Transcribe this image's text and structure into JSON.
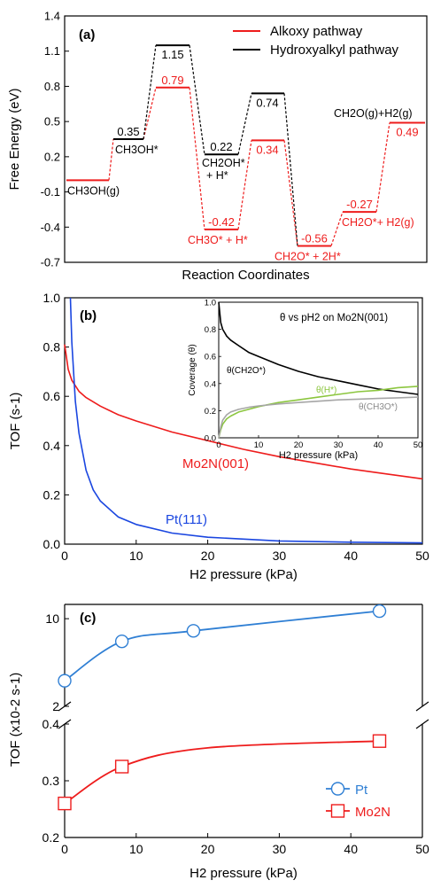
{
  "chart_data": [
    {
      "panel": "(a)",
      "type": "line",
      "xlabel": "Reaction Coordinates",
      "ylabel": "Free Energy (eV)",
      "ylim": [
        -0.7,
        1.4
      ],
      "yticks": [
        "1.4",
        "1.1",
        "0.8",
        "0.5",
        "0.2",
        "-0.1",
        "-0.4",
        "-0.7"
      ],
      "legend": "top-right",
      "colors": {
        "alkoxy": "#ee1c1c",
        "hydroxy": "#000000"
      },
      "series": [
        {
          "name": "Alkoxy pathway",
          "key": "alkoxy",
          "levels": [
            {
              "value": 0.0,
              "label": "",
              "state": "CH3OH(g)"
            },
            {
              "value": 0.35,
              "label": "",
              "state": ""
            },
            {
              "value": 0.79,
              "label": "0.79",
              "state": ""
            },
            {
              "value": -0.42,
              "label": "-0.42",
              "state": "CH3O* + H*"
            },
            {
              "value": 0.34,
              "label": "0.34",
              "state": ""
            },
            {
              "value": -0.56,
              "label": "-0.56",
              "state": "CH2O* + 2H*"
            },
            {
              "value": -0.27,
              "label": "-0.27",
              "state": "CH2O*+ H2(g)"
            },
            {
              "value": 0.49,
              "label": "0.49",
              "state": ""
            }
          ]
        },
        {
          "name": "Hydroxyalkyl pathway",
          "key": "hydroxy",
          "levels": [
            {
              "value": 0.35,
              "label": "0.35",
              "state": "CH3OH*"
            },
            {
              "value": 1.15,
              "label": "1.15",
              "state": ""
            },
            {
              "value": 0.22,
              "label": "0.22",
              "state": "CH2OH*"
            },
            {
              "value": 0.74,
              "label": "0.74",
              "state": ""
            }
          ]
        }
      ],
      "annotations": {
        "hplus": "+ H*",
        "product": "CH2O(g)+H2(g)"
      }
    },
    {
      "panel": "(b)",
      "type": "line",
      "xlabel": "H2 pressure (kPa)",
      "ylabel": "TOF (s-1)",
      "xlim": [
        0,
        50
      ],
      "ylim": [
        0,
        1.0
      ],
      "xticks": [
        "0",
        "10",
        "20",
        "30",
        "40",
        "50"
      ],
      "yticks": [
        "0.0",
        "0.2",
        "0.4",
        "0.6",
        "0.8",
        "1.0"
      ],
      "series": [
        {
          "name": "Mo2N(001)",
          "color": "#ee1c1c",
          "x": [
            0,
            0.5,
            1,
            2,
            3,
            5,
            7.5,
            10,
            15,
            20,
            25,
            30,
            35,
            40,
            45,
            50
          ],
          "y": [
            0.81,
            0.71,
            0.665,
            0.62,
            0.595,
            0.56,
            0.525,
            0.5,
            0.455,
            0.42,
            0.385,
            0.355,
            0.33,
            0.305,
            0.285,
            0.265
          ]
        },
        {
          "name": "Pt(111)",
          "color": "#1a46e0",
          "x": [
            0.8,
            1,
            1.5,
            2,
            3,
            4,
            5,
            7.5,
            10,
            15,
            20,
            30,
            40,
            50
          ],
          "y": [
            1.0,
            0.82,
            0.58,
            0.45,
            0.3,
            0.22,
            0.175,
            0.11,
            0.08,
            0.045,
            0.028,
            0.013,
            0.008,
            0.005
          ]
        }
      ],
      "inset": {
        "title": "θ vs pH2 on Mo2N(001)",
        "xlabel": "H2 pressure (kPa)",
        "ylabel": "Coverage (θ)",
        "xlim": [
          0,
          50
        ],
        "ylim": [
          0,
          1.0
        ],
        "xticks": [
          "0",
          "10",
          "20",
          "30",
          "40",
          "50"
        ],
        "yticks": [
          "0.0",
          "0.2",
          "0.4",
          "0.6",
          "0.8",
          "1.0"
        ],
        "series": [
          {
            "name": "θ(CH2O*)",
            "color": "#000000",
            "x": [
              0,
              0.5,
              1,
              2,
              3,
              5,
              7.5,
              10,
              15,
              20,
              25,
              30,
              35,
              40,
              45,
              50
            ],
            "y": [
              1.0,
              0.85,
              0.8,
              0.75,
              0.72,
              0.68,
              0.63,
              0.6,
              0.54,
              0.49,
              0.45,
              0.42,
              0.39,
              0.36,
              0.34,
              0.32
            ]
          },
          {
            "name": "θ(H*)",
            "color": "#8cc63f",
            "x": [
              0,
              0.5,
              1,
              2,
              3,
              5,
              7.5,
              10,
              15,
              20,
              25,
              30,
              35,
              40,
              45,
              50
            ],
            "y": [
              0.0,
              0.06,
              0.1,
              0.14,
              0.16,
              0.19,
              0.21,
              0.23,
              0.26,
              0.28,
              0.3,
              0.32,
              0.34,
              0.35,
              0.37,
              0.38
            ]
          },
          {
            "name": "θ(CH3O*)",
            "color": "#a6a6a6",
            "x": [
              0,
              0.5,
              1,
              2,
              3,
              5,
              7.5,
              10,
              15,
              20,
              25,
              30,
              35,
              40,
              45,
              50
            ],
            "y": [
              0.0,
              0.08,
              0.13,
              0.17,
              0.19,
              0.21,
              0.225,
              0.235,
              0.25,
              0.26,
              0.27,
              0.28,
              0.285,
              0.29,
              0.295,
              0.3
            ]
          }
        ]
      }
    },
    {
      "panel": "(c)",
      "type": "line",
      "xlabel": "H2 pressure (kPa)",
      "ylabel": "TOF (x10-2 s-1)",
      "xlim": [
        0,
        50
      ],
      "xticks": [
        "0",
        "10",
        "20",
        "30",
        "40",
        "50"
      ],
      "broken_axis": true,
      "legend": "bottom-right",
      "upper_ticks": [
        2,
        10
      ],
      "lower_ylim": [
        0.2,
        0.4
      ],
      "lower_ticks": [
        "0.2",
        "0.3",
        "0.4"
      ],
      "series": [
        {
          "name": "Pt",
          "color": "#2f7fd4",
          "marker": "circle",
          "x": [
            0,
            8,
            18,
            44
          ],
          "y": [
            3.2,
            6.6,
            8.0,
            11.5
          ]
        },
        {
          "name": "Mo2N",
          "color": "#ee1c1c",
          "marker": "square",
          "x": [
            0,
            8,
            44
          ],
          "y": [
            0.26,
            0.325,
            0.37
          ]
        }
      ]
    }
  ]
}
